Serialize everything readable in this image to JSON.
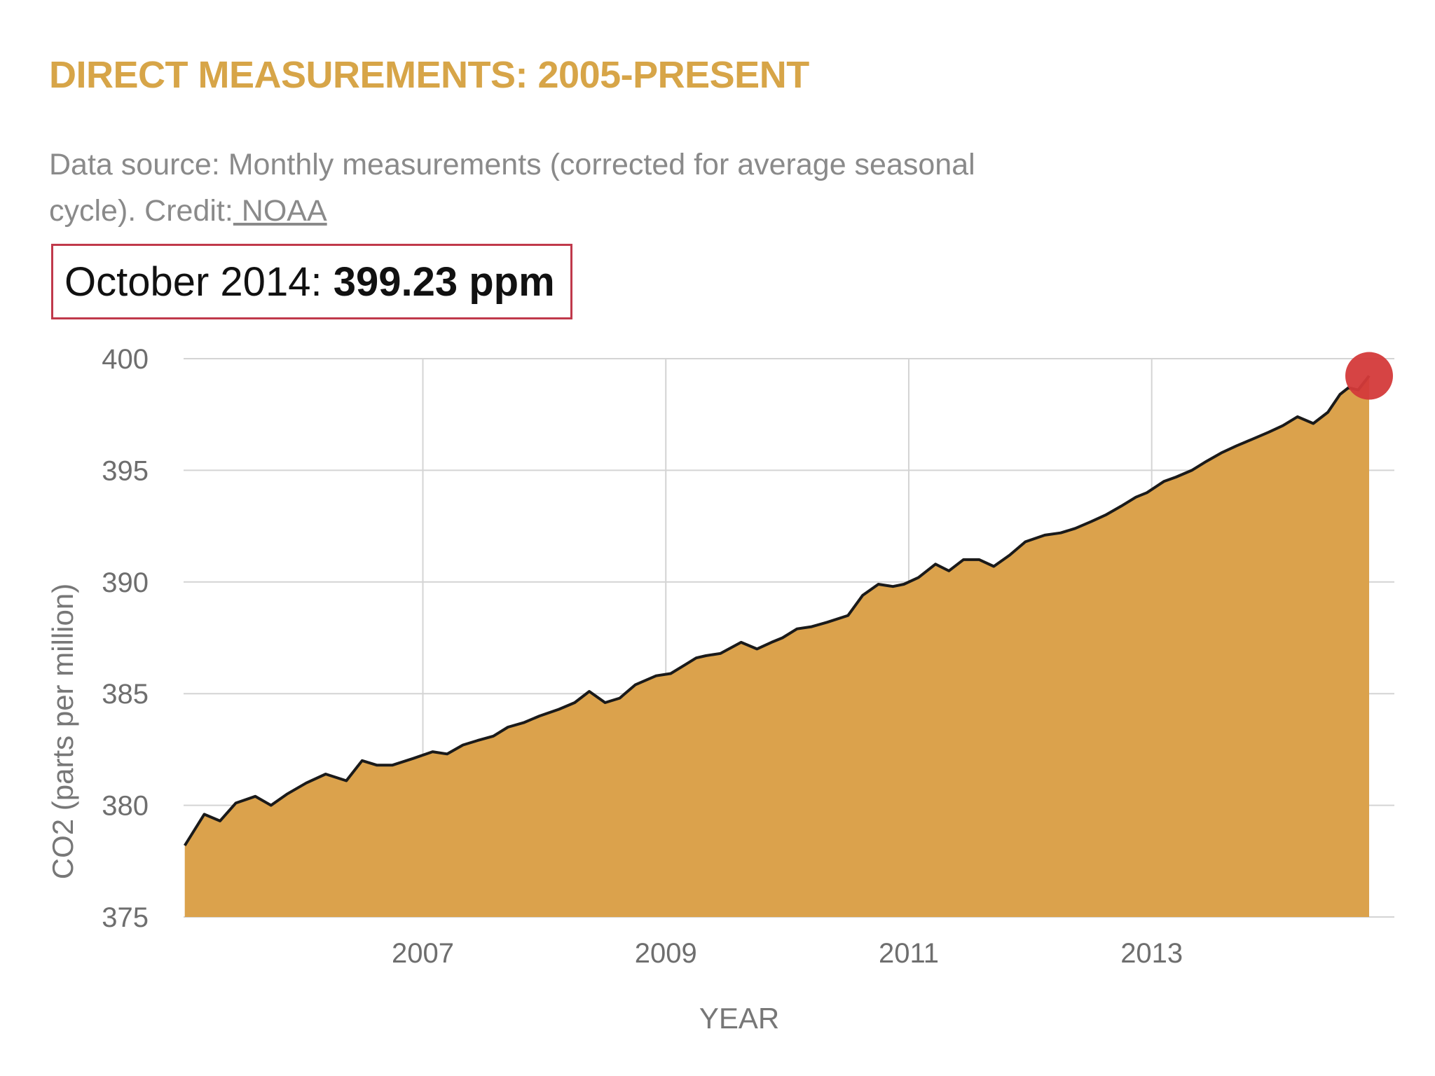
{
  "header": {
    "title": "DIRECT MEASUREMENTS: 2005-PRESENT",
    "source_prefix": "Data source: Monthly measurements (corrected for average seasonal cycle). Credit:",
    "credit_link": " NOAA"
  },
  "readout": {
    "label": "October 2014:",
    "value": "399.23 ppm"
  },
  "colors": {
    "title": "#d7a548",
    "area_fill": "#dba24c",
    "line": "#1a1a1a",
    "marker": "#d43a3a",
    "grid": "#d4d4d4",
    "readout_border": "#c0394b"
  },
  "chart_data": {
    "type": "area",
    "title": "DIRECT MEASUREMENTS: 2005-PRESENT",
    "xlabel": "YEAR",
    "ylabel": "CO2 (parts per million)",
    "xlim": [
      2005.03,
      2014.79
    ],
    "ylim": [
      375,
      400
    ],
    "xticks": [
      2007,
      2009,
      2011,
      2013
    ],
    "yticks": [
      375,
      380,
      385,
      390,
      395,
      400
    ],
    "grid": true,
    "series": [
      {
        "name": "CO2",
        "x": [
          2005.04,
          2005.2,
          2005.33,
          2005.46,
          2005.62,
          2005.75,
          2005.88,
          2006.04,
          2006.2,
          2006.37,
          2006.5,
          2006.62,
          2006.75,
          2006.92,
          2007.08,
          2007.2,
          2007.33,
          2007.45,
          2007.58,
          2007.7,
          2007.83,
          2007.96,
          2008.12,
          2008.25,
          2008.37,
          2008.5,
          2008.62,
          2008.75,
          2008.92,
          2009.04,
          2009.16,
          2009.25,
          2009.33,
          2009.45,
          2009.62,
          2009.75,
          2009.87,
          2009.96,
          2010.08,
          2010.2,
          2010.33,
          2010.5,
          2010.62,
          2010.75,
          2010.87,
          2010.96,
          2011.08,
          2011.22,
          2011.33,
          2011.45,
          2011.58,
          2011.7,
          2011.83,
          2011.96,
          2012.12,
          2012.25,
          2012.37,
          2012.5,
          2012.62,
          2012.75,
          2012.87,
          2012.96,
          2013.1,
          2013.2,
          2013.33,
          2013.45,
          2013.58,
          2013.7,
          2013.83,
          2013.96,
          2014.08,
          2014.2,
          2014.33,
          2014.45,
          2014.55,
          2014.62,
          2014.7,
          2014.79
        ],
        "values": [
          378.2,
          379.6,
          379.3,
          380.1,
          380.4,
          380.0,
          380.5,
          381.0,
          381.4,
          381.1,
          382.0,
          381.8,
          381.8,
          382.1,
          382.4,
          382.3,
          382.7,
          382.9,
          383.1,
          383.5,
          383.7,
          384.0,
          384.3,
          384.6,
          385.1,
          384.6,
          384.8,
          385.4,
          385.8,
          385.9,
          386.3,
          386.6,
          386.7,
          386.8,
          387.3,
          387.0,
          387.3,
          387.5,
          387.9,
          388.0,
          388.2,
          388.5,
          389.4,
          389.9,
          389.8,
          389.9,
          390.2,
          390.8,
          390.5,
          391.0,
          391.0,
          390.7,
          391.2,
          391.8,
          392.1,
          392.2,
          392.4,
          392.7,
          393.0,
          393.4,
          393.8,
          394.0,
          394.5,
          394.7,
          395.0,
          395.4,
          395.8,
          396.1,
          396.4,
          396.7,
          397.0,
          397.4,
          397.1,
          397.6,
          398.4,
          398.7,
          398.6,
          399.23
        ]
      }
    ],
    "highlight": {
      "x": 2014.79,
      "value": 399.23,
      "label": "October 2014: 399.23 ppm"
    }
  }
}
